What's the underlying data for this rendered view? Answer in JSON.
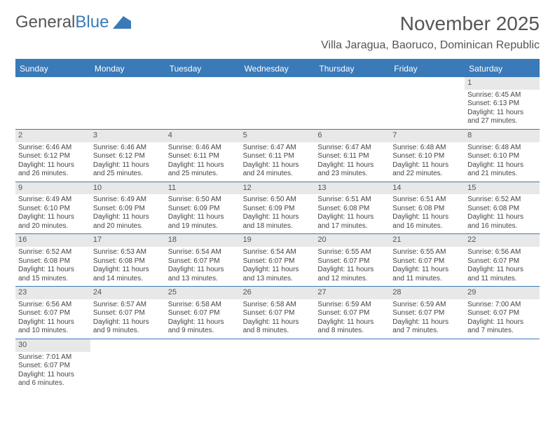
{
  "logo": {
    "text_gray": "General",
    "text_blue": "Blue"
  },
  "header": {
    "month_title": "November 2025",
    "location": "Villa Jaragua, Baoruco, Dominican Republic"
  },
  "colors": {
    "header_bar": "#3a7ab8",
    "date_bar_bg": "#e8e8e8",
    "text": "#444444"
  },
  "day_names": [
    "Sunday",
    "Monday",
    "Tuesday",
    "Wednesday",
    "Thursday",
    "Friday",
    "Saturday"
  ],
  "weeks": [
    [
      null,
      null,
      null,
      null,
      null,
      null,
      {
        "date": "1",
        "sunrise": "Sunrise: 6:45 AM",
        "sunset": "Sunset: 6:13 PM",
        "daylight": "Daylight: 11 hours and 27 minutes."
      }
    ],
    [
      {
        "date": "2",
        "sunrise": "Sunrise: 6:46 AM",
        "sunset": "Sunset: 6:12 PM",
        "daylight": "Daylight: 11 hours and 26 minutes."
      },
      {
        "date": "3",
        "sunrise": "Sunrise: 6:46 AM",
        "sunset": "Sunset: 6:12 PM",
        "daylight": "Daylight: 11 hours and 25 minutes."
      },
      {
        "date": "4",
        "sunrise": "Sunrise: 6:46 AM",
        "sunset": "Sunset: 6:11 PM",
        "daylight": "Daylight: 11 hours and 25 minutes."
      },
      {
        "date": "5",
        "sunrise": "Sunrise: 6:47 AM",
        "sunset": "Sunset: 6:11 PM",
        "daylight": "Daylight: 11 hours and 24 minutes."
      },
      {
        "date": "6",
        "sunrise": "Sunrise: 6:47 AM",
        "sunset": "Sunset: 6:11 PM",
        "daylight": "Daylight: 11 hours and 23 minutes."
      },
      {
        "date": "7",
        "sunrise": "Sunrise: 6:48 AM",
        "sunset": "Sunset: 6:10 PM",
        "daylight": "Daylight: 11 hours and 22 minutes."
      },
      {
        "date": "8",
        "sunrise": "Sunrise: 6:48 AM",
        "sunset": "Sunset: 6:10 PM",
        "daylight": "Daylight: 11 hours and 21 minutes."
      }
    ],
    [
      {
        "date": "9",
        "sunrise": "Sunrise: 6:49 AM",
        "sunset": "Sunset: 6:10 PM",
        "daylight": "Daylight: 11 hours and 20 minutes."
      },
      {
        "date": "10",
        "sunrise": "Sunrise: 6:49 AM",
        "sunset": "Sunset: 6:09 PM",
        "daylight": "Daylight: 11 hours and 20 minutes."
      },
      {
        "date": "11",
        "sunrise": "Sunrise: 6:50 AM",
        "sunset": "Sunset: 6:09 PM",
        "daylight": "Daylight: 11 hours and 19 minutes."
      },
      {
        "date": "12",
        "sunrise": "Sunrise: 6:50 AM",
        "sunset": "Sunset: 6:09 PM",
        "daylight": "Daylight: 11 hours and 18 minutes."
      },
      {
        "date": "13",
        "sunrise": "Sunrise: 6:51 AM",
        "sunset": "Sunset: 6:08 PM",
        "daylight": "Daylight: 11 hours and 17 minutes."
      },
      {
        "date": "14",
        "sunrise": "Sunrise: 6:51 AM",
        "sunset": "Sunset: 6:08 PM",
        "daylight": "Daylight: 11 hours and 16 minutes."
      },
      {
        "date": "15",
        "sunrise": "Sunrise: 6:52 AM",
        "sunset": "Sunset: 6:08 PM",
        "daylight": "Daylight: 11 hours and 16 minutes."
      }
    ],
    [
      {
        "date": "16",
        "sunrise": "Sunrise: 6:52 AM",
        "sunset": "Sunset: 6:08 PM",
        "daylight": "Daylight: 11 hours and 15 minutes."
      },
      {
        "date": "17",
        "sunrise": "Sunrise: 6:53 AM",
        "sunset": "Sunset: 6:08 PM",
        "daylight": "Daylight: 11 hours and 14 minutes."
      },
      {
        "date": "18",
        "sunrise": "Sunrise: 6:54 AM",
        "sunset": "Sunset: 6:07 PM",
        "daylight": "Daylight: 11 hours and 13 minutes."
      },
      {
        "date": "19",
        "sunrise": "Sunrise: 6:54 AM",
        "sunset": "Sunset: 6:07 PM",
        "daylight": "Daylight: 11 hours and 13 minutes."
      },
      {
        "date": "20",
        "sunrise": "Sunrise: 6:55 AM",
        "sunset": "Sunset: 6:07 PM",
        "daylight": "Daylight: 11 hours and 12 minutes."
      },
      {
        "date": "21",
        "sunrise": "Sunrise: 6:55 AM",
        "sunset": "Sunset: 6:07 PM",
        "daylight": "Daylight: 11 hours and 11 minutes."
      },
      {
        "date": "22",
        "sunrise": "Sunrise: 6:56 AM",
        "sunset": "Sunset: 6:07 PM",
        "daylight": "Daylight: 11 hours and 11 minutes."
      }
    ],
    [
      {
        "date": "23",
        "sunrise": "Sunrise: 6:56 AM",
        "sunset": "Sunset: 6:07 PM",
        "daylight": "Daylight: 11 hours and 10 minutes."
      },
      {
        "date": "24",
        "sunrise": "Sunrise: 6:57 AM",
        "sunset": "Sunset: 6:07 PM",
        "daylight": "Daylight: 11 hours and 9 minutes."
      },
      {
        "date": "25",
        "sunrise": "Sunrise: 6:58 AM",
        "sunset": "Sunset: 6:07 PM",
        "daylight": "Daylight: 11 hours and 9 minutes."
      },
      {
        "date": "26",
        "sunrise": "Sunrise: 6:58 AM",
        "sunset": "Sunset: 6:07 PM",
        "daylight": "Daylight: 11 hours and 8 minutes."
      },
      {
        "date": "27",
        "sunrise": "Sunrise: 6:59 AM",
        "sunset": "Sunset: 6:07 PM",
        "daylight": "Daylight: 11 hours and 8 minutes."
      },
      {
        "date": "28",
        "sunrise": "Sunrise: 6:59 AM",
        "sunset": "Sunset: 6:07 PM",
        "daylight": "Daylight: 11 hours and 7 minutes."
      },
      {
        "date": "29",
        "sunrise": "Sunrise: 7:00 AM",
        "sunset": "Sunset: 6:07 PM",
        "daylight": "Daylight: 11 hours and 7 minutes."
      }
    ],
    [
      {
        "date": "30",
        "sunrise": "Sunrise: 7:01 AM",
        "sunset": "Sunset: 6:07 PM",
        "daylight": "Daylight: 11 hours and 6 minutes."
      },
      null,
      null,
      null,
      null,
      null,
      null
    ]
  ]
}
